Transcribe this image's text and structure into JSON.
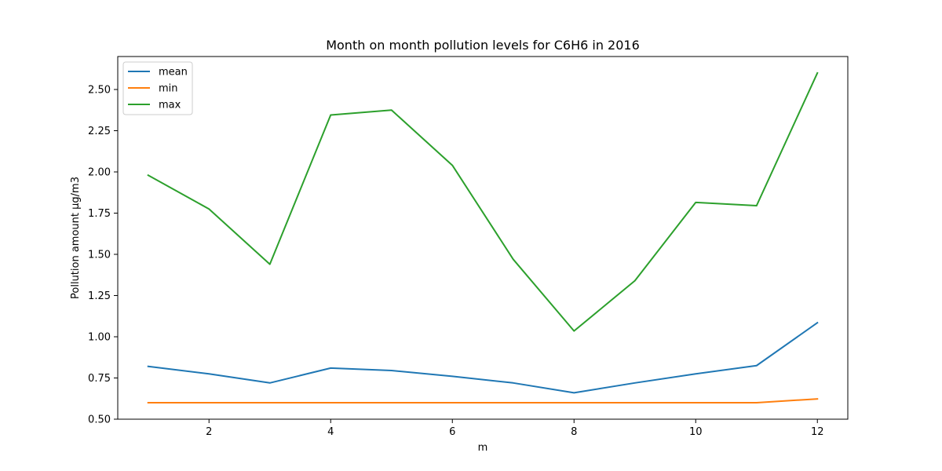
{
  "chart_data": {
    "type": "line",
    "title": "Month on month pollution levels for C6H6 in 2016",
    "xlabel": "m",
    "ylabel": "Pollution amount µg/m3",
    "x": [
      1,
      2,
      3,
      4,
      5,
      6,
      7,
      8,
      9,
      10,
      11,
      12
    ],
    "xlim": [
      0.5,
      12.5
    ],
    "ylim": [
      0.5,
      2.7
    ],
    "xticks": [
      2,
      4,
      6,
      8,
      10,
      12
    ],
    "xtick_labels": [
      "2",
      "4",
      "6",
      "8",
      "10",
      "12"
    ],
    "yticks": [
      0.5,
      0.75,
      1.0,
      1.25,
      1.5,
      1.75,
      2.0,
      2.25,
      2.5
    ],
    "ytick_labels": [
      "0.50",
      "0.75",
      "1.00",
      "1.25",
      "1.50",
      "1.75",
      "2.00",
      "2.25",
      "2.50"
    ],
    "grid": false,
    "legend_position": "top-left",
    "series": [
      {
        "name": "mean",
        "color": "#1f77b4",
        "values": [
          0.82,
          0.775,
          0.72,
          0.81,
          0.795,
          0.76,
          0.72,
          0.66,
          0.72,
          0.775,
          0.825,
          1.085
        ]
      },
      {
        "name": "min",
        "color": "#ff7f0e",
        "values": [
          0.6,
          0.6,
          0.6,
          0.6,
          0.6,
          0.6,
          0.6,
          0.6,
          0.6,
          0.6,
          0.6,
          0.623
        ]
      },
      {
        "name": "max",
        "color": "#2ca02c",
        "values": [
          1.98,
          1.775,
          1.44,
          2.345,
          2.375,
          2.04,
          1.47,
          1.035,
          1.34,
          1.815,
          1.795,
          2.6
        ]
      }
    ]
  }
}
